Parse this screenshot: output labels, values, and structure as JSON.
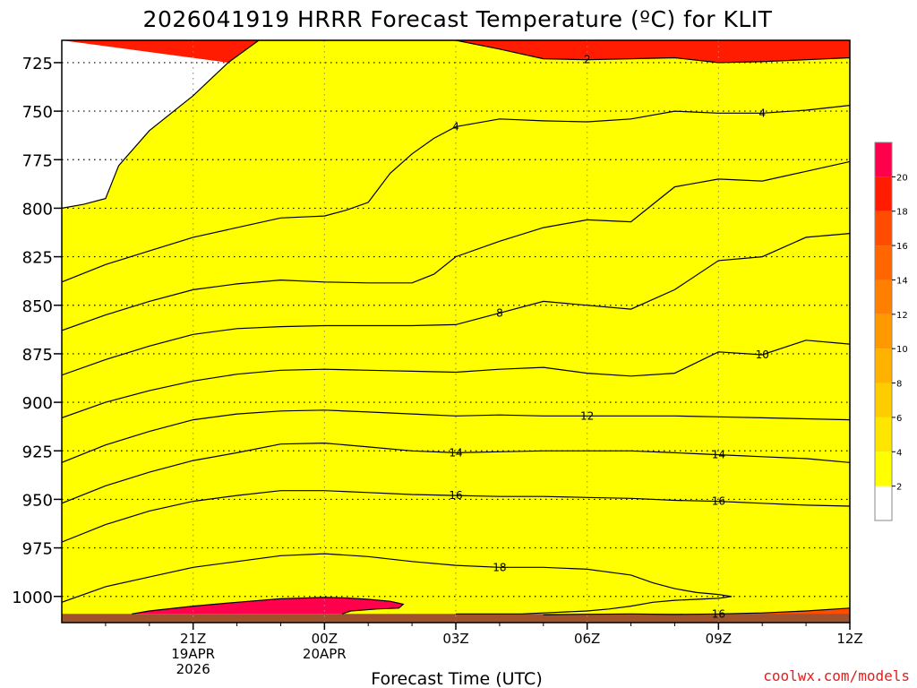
{
  "chart_data": {
    "type": "heatmap",
    "title": "2026041919 HRRR Forecast Temperature (ºC) for KLIT",
    "xlabel": "Forecast Time (UTC)",
    "credit": "coolwx.com/models",
    "x_unit": "hours from 18Z 19APR",
    "y_unit": "hPa",
    "xlim": [
      0,
      18
    ],
    "ylim": [
      1013.5,
      713.5
    ],
    "y_ticks": [
      725,
      750,
      775,
      800,
      825,
      850,
      875,
      900,
      925,
      950,
      975,
      1000
    ],
    "y_tick_labels": [
      "725",
      "750",
      "775",
      "800",
      "825",
      "850",
      "875",
      "900",
      "925",
      "950",
      "975",
      "1000"
    ],
    "x_ticks": [
      {
        "hour": 3,
        "lines": [
          "21Z",
          "19APR",
          "2026"
        ]
      },
      {
        "hour": 6,
        "lines": [
          "00Z",
          "20APR"
        ]
      },
      {
        "hour": 9,
        "lines": [
          "03Z"
        ]
      },
      {
        "hour": 12,
        "lines": [
          "06Z"
        ]
      },
      {
        "hour": 15,
        "lines": [
          "09Z"
        ]
      },
      {
        "hour": 18,
        "lines": [
          "12Z"
        ]
      }
    ],
    "grid": true,
    "colorbar": {
      "levels": [
        2,
        4,
        6,
        8,
        10,
        12,
        14,
        16,
        18,
        20
      ],
      "colors": [
        "#ffffff",
        "#ffff00",
        "#ffe600",
        "#ffcc00",
        "#ffb200",
        "#ff9900",
        "#ff7f00",
        "#ff6600",
        "#ff4c00",
        "#ff1c00",
        "#ff004c"
      ],
      "labels": [
        "2",
        "4",
        "6",
        "8",
        "10",
        "12",
        "14",
        "16",
        "18",
        "20"
      ]
    },
    "surface_pressure_hpa": 1009,
    "surface_color": "#a0522d",
    "isotherms": [
      {
        "value": 2,
        "label": "2",
        "x": [
          0,
          0.5,
          1.0,
          1.3,
          2.0,
          3.0,
          3.8,
          4.5,
          8.0,
          9.0,
          10.0,
          11.0,
          12.0,
          13.0,
          14.0,
          15.0,
          16.0,
          17.0,
          18.0
        ],
        "p": [
          800,
          798,
          795,
          778,
          760,
          742,
          725,
          713.5,
          713.5,
          713.5,
          718,
          723,
          723.5,
          723,
          722.5,
          725,
          724.5,
          723.5,
          722.5
        ]
      },
      {
        "value": 4,
        "label": "4",
        "x": [
          0,
          1.0,
          2.0,
          3.0,
          4.0,
          5.0,
          5.5,
          6.0,
          6.5,
          7.0,
          7.5,
          8.0,
          8.5,
          9.0,
          10.0,
          11.0,
          12.0,
          13.0,
          14.0,
          15.0,
          16.0,
          17.0,
          18.0
        ],
        "p": [
          838,
          829,
          822,
          815,
          810,
          805,
          804.5,
          804,
          801,
          797,
          782,
          772,
          764,
          758,
          754,
          755,
          755.5,
          754,
          750,
          751,
          751,
          749.5,
          747
        ]
      },
      {
        "value": 6,
        "label": "",
        "x": [
          0,
          1.0,
          2.0,
          3.0,
          4.0,
          5.0,
          6.0,
          7.0,
          8.0,
          8.5,
          9.0,
          10.0,
          11.0,
          12.0,
          13.0,
          14.0,
          15.0,
          16.0,
          17.0,
          18.0
        ],
        "p": [
          863,
          855,
          848,
          842,
          839,
          837,
          838,
          838.5,
          838.5,
          834,
          825,
          817,
          810,
          806,
          807,
          789,
          785,
          786,
          781,
          776
        ]
      },
      {
        "value": 8,
        "label": "8",
        "x": [
          0,
          1.0,
          2.0,
          3.0,
          4.0,
          5.0,
          6.0,
          7.0,
          8.0,
          9.0,
          10.0,
          11.0,
          12.0,
          13.0,
          14.0,
          15.0,
          16.0,
          17.0,
          18.0
        ],
        "p": [
          886,
          878,
          871,
          865,
          862,
          861,
          860.5,
          860.5,
          860.5,
          860,
          854,
          848,
          850,
          852,
          842,
          827,
          825,
          815,
          813
        ]
      },
      {
        "value": 10,
        "label": "10",
        "x": [
          0,
          1.0,
          2.0,
          3.0,
          4.0,
          5.0,
          6.0,
          7.0,
          8.0,
          9.0,
          10.0,
          11.0,
          12.0,
          13.0,
          14.0,
          15.0,
          16.0,
          17.0,
          18.0
        ],
        "p": [
          908,
          900,
          894,
          889,
          885.5,
          883.5,
          883,
          883.5,
          884,
          884.5,
          883,
          882,
          885,
          886.5,
          885,
          874,
          875.5,
          868,
          870
        ]
      },
      {
        "value": 12,
        "label": "12",
        "x": [
          0,
          1.0,
          2.0,
          3.0,
          4.0,
          5.0,
          6.0,
          7.0,
          8.0,
          9.0,
          10.0,
          11.0,
          12.0,
          13.0,
          14.0,
          15.0,
          16.0,
          17.0,
          18.0
        ],
        "p": [
          931,
          922,
          915,
          909,
          906,
          904.5,
          904,
          905,
          906,
          907,
          906.5,
          907,
          907,
          907,
          907,
          907.5,
          908,
          908.5,
          909
        ]
      },
      {
        "value": 14,
        "label": "14",
        "x": [
          0,
          1.0,
          2.0,
          3.0,
          4.0,
          5.0,
          6.0,
          7.0,
          8.0,
          9.0,
          10.0,
          11.0,
          12.0,
          13.0,
          14.0,
          15.0,
          16.0,
          17.0,
          18.0
        ],
        "p": [
          952,
          943,
          936,
          930,
          926,
          921.5,
          921,
          923,
          925,
          926,
          925.5,
          925,
          925,
          925,
          926,
          927,
          928,
          929,
          931
        ]
      },
      {
        "value": 16,
        "label": "16",
        "x": [
          0,
          1.0,
          2.0,
          3.0,
          4.0,
          5.0,
          6.0,
          7.0,
          8.0,
          9.0,
          10.0,
          11.0,
          12.0,
          13.0,
          14.0,
          15.0,
          16.0,
          17.0,
          18.0
        ],
        "p": [
          972,
          963,
          956,
          951,
          948,
          945.5,
          945.5,
          946.5,
          947.5,
          948,
          948.5,
          948.5,
          949,
          949.5,
          950.5,
          951,
          952,
          953,
          953.5
        ]
      },
      {
        "value": 18,
        "label": "18",
        "x": [
          0,
          1.0,
          2.0,
          3.0,
          4.0,
          5.0,
          6.0,
          7.0,
          8.0,
          9.0,
          10.0,
          11.0,
          12.0,
          13.0,
          13.5,
          14.0,
          14.5,
          15.0,
          15.3,
          15.0,
          14.5,
          14.0,
          13.5,
          13.0,
          12.5,
          12.0,
          11.5,
          11.0,
          10.5,
          10.0,
          9.5,
          9.0
        ],
        "p": [
          1003,
          995,
          990,
          985,
          982,
          979,
          978,
          979.5,
          982,
          984,
          985,
          985,
          986,
          989,
          993,
          996,
          998,
          999,
          1000,
          1001,
          1001.5,
          1002,
          1003,
          1005,
          1006.5,
          1007.5,
          1008,
          1008.5,
          1009,
          1009,
          1009,
          1009
        ]
      },
      {
        "value": 16,
        "label": "16",
        "x": [
          11.0,
          12.0,
          13.0,
          14.0,
          15.0,
          16.0,
          17.0,
          18.0
        ],
        "p": [
          1009.5,
          1009.2,
          1009,
          1009.3,
          1009,
          1008.5,
          1007.5,
          1006
        ]
      },
      {
        "value": 20,
        "label": "",
        "x": [
          1.6,
          2.0,
          3.0,
          4.0,
          5.0,
          6.0,
          6.5,
          7.0,
          7.5,
          7.8,
          7.7,
          7.2,
          6.6,
          6.4
        ],
        "p": [
          1009,
          1007.5,
          1005,
          1003,
          1001.2,
          1000.5,
          1000.8,
          1001.5,
          1002.5,
          1004,
          1006,
          1006.5,
          1007.5,
          1009
        ]
      }
    ]
  }
}
